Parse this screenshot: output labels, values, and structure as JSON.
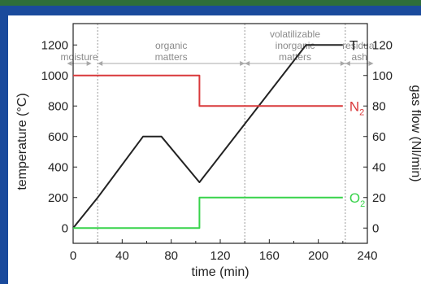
{
  "colors": {
    "frame": "#1a4a9c",
    "frame_top": "#2e6e3a",
    "temperature": "#222222",
    "n2": "#d9383a",
    "o2": "#37d34a",
    "region": "#8a8a8a"
  },
  "chart_data": {
    "type": "line",
    "xlabel": "time (min)",
    "ylabel_left": "temperature (°C)",
    "ylabel_right": "gas flow (Nl/min)",
    "xlim": [
      0,
      240
    ],
    "ylim_left": [
      -100,
      1340
    ],
    "ylim_right": [
      -10,
      134
    ],
    "x_ticks": [
      "0",
      "40",
      "80",
      "120",
      "160",
      "200",
      "240"
    ],
    "y_ticks_left": [
      "0",
      "200",
      "400",
      "600",
      "800",
      "1000",
      "1200"
    ],
    "y_ticks_right": [
      "0",
      "20",
      "40",
      "60",
      "80",
      "100",
      "120"
    ],
    "grid": false,
    "series": [
      {
        "name": "T",
        "axis": "left",
        "color": "#222222",
        "x": [
          0,
          3,
          20,
          57,
          72,
          103,
          190,
          220
        ],
        "y": [
          0,
          30,
          200,
          600,
          600,
          300,
          1200,
          1200
        ]
      },
      {
        "name": "N2",
        "label_main": "N",
        "label_sub": "2",
        "axis": "right",
        "color": "#d9383a",
        "x": [
          0,
          103,
          103,
          220
        ],
        "y": [
          100,
          100,
          80,
          80
        ]
      },
      {
        "name": "O2",
        "label_main": "O",
        "label_sub": "2",
        "axis": "right",
        "color": "#37d34a",
        "x": [
          0,
          103,
          103,
          220
        ],
        "y": [
          0,
          0,
          20,
          20
        ]
      }
    ],
    "regions": [
      {
        "lines": [
          "moisture"
        ],
        "from": -5,
        "to": 15
      },
      {
        "lines": [
          "organic",
          "matters"
        ],
        "from": 20,
        "to": 140
      },
      {
        "lines": [
          "volatilizable",
          "inorganic",
          "matters"
        ],
        "from": 140,
        "to": 222
      },
      {
        "lines": [
          "residual",
          "ash"
        ],
        "from": 222,
        "to": 245
      }
    ],
    "region_boundaries": [
      20,
      140,
      222
    ]
  }
}
